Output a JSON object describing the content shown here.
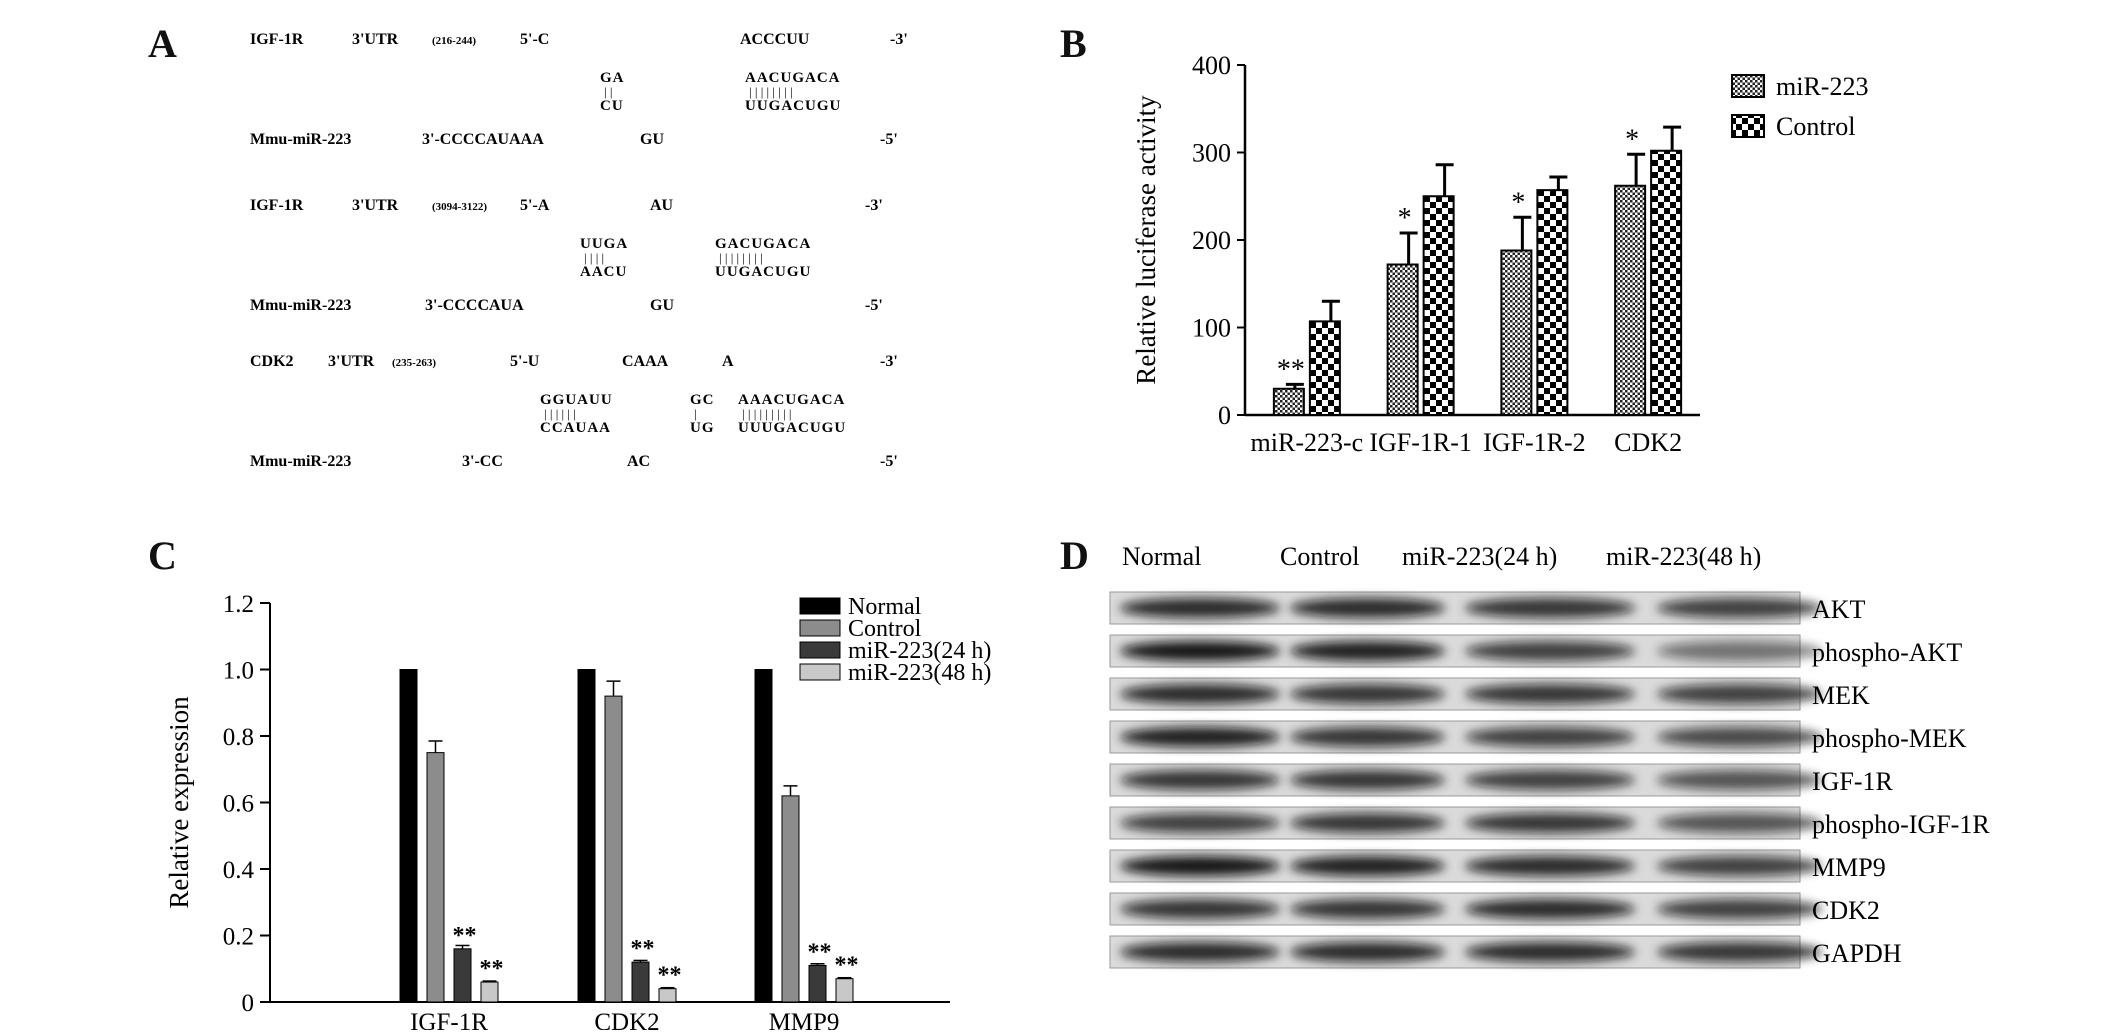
{
  "panels": {
    "A": {
      "letter": "A",
      "rows": [
        {
          "target": "IGF-1R",
          "utr": "3'UTR",
          "range": "(216-244)",
          "target_prefix": "5'-C",
          "target_mid": "ACCCUU",
          "target_end": "-3'",
          "pair_groups": [
            {
              "top": "GA",
              "bottom": "CU",
              "bars": "| |"
            },
            {
              "top": "AACUGACA",
              "bottom": "UUGACUGU",
              "bars": "| | | | | | | |"
            }
          ],
          "mirna": "Mmu-miR-223",
          "mirna_prefix": "3'-CCCCAUAAA",
          "mirna_mid": "GU",
          "mirna_end": "-5'"
        },
        {
          "target": "IGF-1R",
          "utr": "3'UTR",
          "range": "(3094-3122)",
          "target_prefix": "5'-A",
          "target_mid": "AU",
          "target_end": "-3'",
          "pair_groups": [
            {
              "top": "UUGA",
              "bottom": "AACU",
              "bars": "| | | |"
            },
            {
              "top": "GACUGACA",
              "bottom": "UUGACUGU",
              "bars": "| | | | | | | |"
            }
          ],
          "mirna": "Mmu-miR-223",
          "mirna_prefix": "3'-CCCCAUA",
          "mirna_mid": "GU",
          "mirna_end": "-5'"
        },
        {
          "target": "CDK2",
          "utr": "3'UTR",
          "range": "(235-263)",
          "target_prefix": "5'-U",
          "target_mid": "CAAA",
          "target_mid2": "A",
          "target_end": "-3'",
          "pair_groups": [
            {
              "top": "GGUAUU",
              "bottom": "CCAUAA",
              "bars": "| | | | | |"
            },
            {
              "top": "GC",
              "bottom": "UG",
              "bars": "|"
            },
            {
              "top": "AAACUGACA",
              "bottom": "UUUGACUGU",
              "bars": "| | | | | | | | |"
            }
          ],
          "mirna": "Mmu-miR-223",
          "mirna_prefix": "3'-CC",
          "mirna_mid": "AC",
          "mirna_end": "-5'"
        }
      ]
    },
    "B": {
      "letter": "B"
    },
    "C": {
      "letter": "C"
    },
    "D": {
      "letter": "D",
      "columns": [
        "Normal",
        "Control",
        "miR-223(24 h)",
        "miR-223(48 h)"
      ],
      "bands": [
        "AKT",
        "phospho-AKT",
        "MEK",
        "phospho-MEK",
        "IGF-1R",
        "phospho-IGF-1R",
        "MMP9",
        "CDK2",
        "GAPDH"
      ],
      "intensity": [
        [
          0.85,
          0.85,
          0.8,
          0.75
        ],
        [
          0.95,
          0.9,
          0.75,
          0.5
        ],
        [
          0.85,
          0.8,
          0.8,
          0.75
        ],
        [
          0.9,
          0.8,
          0.75,
          0.7
        ],
        [
          0.8,
          0.8,
          0.75,
          0.65
        ],
        [
          0.75,
          0.8,
          0.8,
          0.65
        ],
        [
          0.95,
          0.9,
          0.85,
          0.75
        ],
        [
          0.8,
          0.8,
          0.85,
          0.75
        ],
        [
          0.85,
          0.85,
          0.85,
          0.8
        ]
      ]
    }
  },
  "chart_data": [
    {
      "panel": "B",
      "type": "bar",
      "ylabel": "Relative luciferase activity",
      "categories": [
        "miR-223-c",
        "IGF-1R-1",
        "IGF-1R-2",
        "CDK2"
      ],
      "series": [
        {
          "name": "miR-223",
          "values": [
            30,
            172,
            188,
            262
          ],
          "errors": [
            5,
            36,
            38,
            36
          ],
          "annotations": [
            "**",
            "*",
            "*",
            "*"
          ],
          "fill": "crosshatch-fine"
        },
        {
          "name": "Control",
          "values": [
            107,
            250,
            257,
            302
          ],
          "errors": [
            23,
            36,
            15,
            27
          ],
          "annotations": [
            "",
            "",
            "",
            ""
          ],
          "fill": "checker"
        }
      ],
      "ylim": [
        0,
        400
      ],
      "yticks": [
        "0",
        "100",
        "200",
        "300",
        "400"
      ],
      "legend": "top-right"
    },
    {
      "panel": "C",
      "type": "bar",
      "ylabel": "Relative expression",
      "categories": [
        "IGF-1R",
        "CDK2",
        "MMP9"
      ],
      "series": [
        {
          "name": "Normal",
          "values": [
            1.0,
            1.0,
            1.0
          ],
          "errors": [
            0,
            0,
            0
          ],
          "annotations": [
            "",
            "",
            ""
          ],
          "color": "#000000"
        },
        {
          "name": "Control",
          "values": [
            0.75,
            0.92,
            0.62
          ],
          "errors": [
            0.035,
            0.045,
            0.03
          ],
          "annotations": [
            "",
            "",
            ""
          ],
          "color": "#8c8c8c"
        },
        {
          "name": "miR-223(24 h)",
          "values": [
            0.16,
            0.12,
            0.11
          ],
          "errors": [
            0.01,
            0.005,
            0.005
          ],
          "annotations": [
            "**",
            "**",
            "**"
          ],
          "color": "#3a3a3a"
        },
        {
          "name": "miR-223(48 h)",
          "values": [
            0.06,
            0.04,
            0.07
          ],
          "errors": [
            0.003,
            0.003,
            0.003
          ],
          "annotations": [
            "**",
            "**",
            "**"
          ],
          "color": "#c8c8c8"
        }
      ],
      "ylim": [
        0,
        1.2
      ],
      "yticks": [
        "0",
        "0.2",
        "0.4",
        "0.6",
        "0.8",
        "1.0",
        "1.2"
      ],
      "legend": "top-right"
    }
  ]
}
